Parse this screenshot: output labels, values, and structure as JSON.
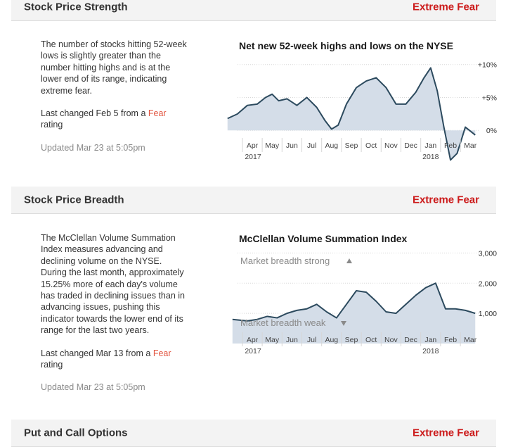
{
  "sections": [
    {
      "title": "Stock Price Strength",
      "rating": "Extreme Fear",
      "description": "The number of stocks hitting 52-week lows is slightly greater than the number hitting highs and is at the lower end of its range, indicating extreme fear.",
      "changed_prefix": "Last changed Feb 5 from a ",
      "changed_rating": "Fear",
      "changed_suffix": "rating",
      "updated": "Updated Mar 23 at 5:05pm"
    },
    {
      "title": "Stock Price Breadth",
      "rating": "Extreme Fear",
      "description": "The McClellan Volume Summation Index measures advancing and declining volume on the NYSE. During the last month, approximately 15.25% more of each day's volume has traded in declining issues than in advancing issues, pushing this indicator towards the lower end of its range for the last two years.",
      "changed_prefix": "Last changed Mar 13 from a ",
      "changed_rating": "Fear",
      "changed_suffix": "rating",
      "updated": "Updated Mar 23 at 5:05pm"
    },
    {
      "title": "Put and Call Options",
      "rating": "Extreme Fear"
    }
  ],
  "chart_data": [
    {
      "type": "area",
      "title": "Net new 52-week highs and lows on the NYSE",
      "x_tick_labels": [
        "Apr",
        "May",
        "Jun",
        "Jul",
        "Aug",
        "Sep",
        "Oct",
        "Nov",
        "Dec",
        "Jan",
        "Feb",
        "Mar"
      ],
      "x_year_labels": [
        "2017",
        "2018"
      ],
      "y_tick_labels": [
        "+10%",
        "+5%",
        "0%"
      ],
      "y_ticks": [
        10,
        5,
        0
      ],
      "ylim": [
        -5,
        12
      ],
      "x": [
        "2017-03",
        "2017-03",
        "2017-04",
        "2017-04",
        "2017-05",
        "2017-05",
        "2017-05",
        "2017-06",
        "2017-06",
        "2017-07",
        "2017-07",
        "2017-08",
        "2017-08",
        "2017-08",
        "2017-09",
        "2017-09",
        "2017-10",
        "2017-10",
        "2017-11",
        "2017-11",
        "2017-12",
        "2017-12",
        "2018-01",
        "2018-01",
        "2018-01",
        "2018-02",
        "2018-02",
        "2018-02",
        "2018-03",
        "2018-03"
      ],
      "values": [
        1.8,
        2.5,
        3.8,
        4.0,
        5.0,
        5.5,
        4.5,
        4.8,
        3.8,
        5.0,
        3.5,
        1.5,
        0.2,
        0.8,
        4.0,
        6.5,
        7.5,
        8.0,
        6.5,
        4.0,
        4.0,
        5.8,
        8.0,
        9.5,
        6.0,
        0.5,
        -4.5,
        -3.5,
        0.5,
        -0.7
      ],
      "legend": "none",
      "colors": {
        "line": "#2c4a5e",
        "fill": "#d4dde8"
      }
    },
    {
      "type": "area",
      "title": "McClellan Volume Summation Index",
      "x_tick_labels": [
        "Apr",
        "May",
        "Jun",
        "Jul",
        "Aug",
        "Sep",
        "Oct",
        "Nov",
        "Dec",
        "Jan",
        "Feb",
        "Mar"
      ],
      "x_year_labels": [
        "2017",
        "2018"
      ],
      "y_tick_labels": [
        "3,000",
        "2,000",
        "1,000"
      ],
      "y_ticks": [
        3000,
        2000,
        1000
      ],
      "ylim": [
        0,
        3500
      ],
      "annotations": [
        "Market breadth strong",
        "Market breadth weak"
      ],
      "x": [
        "2017-03",
        "2017-04",
        "2017-04",
        "2017-05",
        "2017-05",
        "2017-06",
        "2017-06",
        "2017-07",
        "2017-07",
        "2017-08",
        "2017-08",
        "2017-09",
        "2017-09",
        "2017-10",
        "2017-10",
        "2017-11",
        "2017-11",
        "2017-12",
        "2017-12",
        "2018-01",
        "2018-01",
        "2018-02",
        "2018-02",
        "2018-03",
        "2018-03"
      ],
      "values": [
        800,
        750,
        800,
        900,
        850,
        1000,
        1100,
        1150,
        1300,
        1050,
        850,
        1300,
        1750,
        1700,
        1400,
        1050,
        1000,
        1300,
        1600,
        1850,
        2000,
        1150,
        1150,
        1100,
        1000
      ],
      "legend": "none",
      "colors": {
        "line": "#2c4a5e",
        "fill": "#d4dde8"
      }
    }
  ]
}
